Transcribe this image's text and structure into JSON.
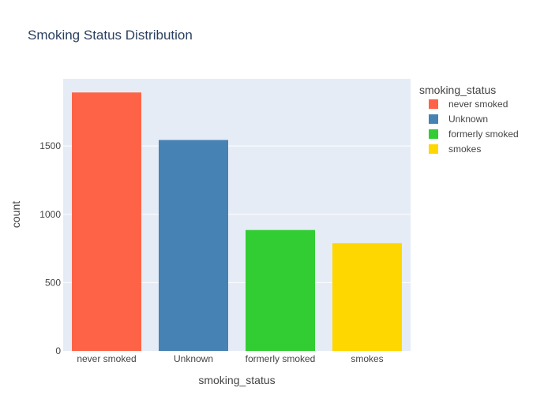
{
  "chart_data": {
    "type": "bar",
    "title": "Smoking Status Distribution",
    "xlabel": "smoking_status",
    "ylabel": "count",
    "categories": [
      "never smoked",
      "Unknown",
      "formerly smoked",
      "smokes"
    ],
    "values": [
      1892,
      1544,
      885,
      789
    ],
    "colors": [
      "#ff6347",
      "#4682b4",
      "#32cd32",
      "#ffd700"
    ],
    "ylim": [
      0,
      1991.6
    ],
    "yticks": [
      0,
      500,
      1000,
      1500
    ],
    "ytick_labels": [
      "0",
      "500",
      "1000",
      "1500"
    ],
    "grid": true,
    "legend": {
      "title": "smoking_status",
      "placement": "right",
      "entries": [
        "never smoked",
        "Unknown",
        "formerly smoked",
        "smokes"
      ]
    },
    "plot_bg": "#e5ecf6"
  }
}
